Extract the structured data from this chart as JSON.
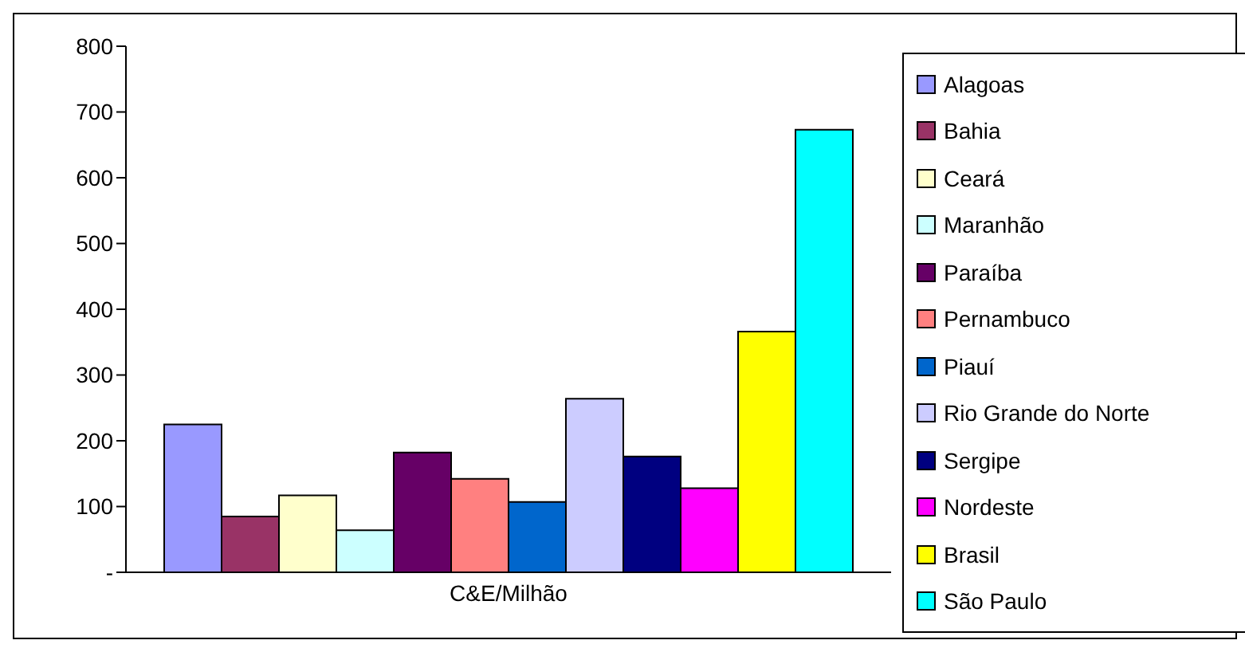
{
  "chart_data": {
    "type": "bar",
    "categories": [
      "C&E/Milhão"
    ],
    "series": [
      {
        "name": "Alagoas",
        "color": "#9999ff",
        "values": [
          225
        ]
      },
      {
        "name": "Bahia",
        "color": "#993366",
        "values": [
          85
        ]
      },
      {
        "name": "Ceará",
        "color": "#ffffcc",
        "values": [
          117
        ]
      },
      {
        "name": "Maranhão",
        "color": "#ccffff",
        "values": [
          64
        ]
      },
      {
        "name": "Paraíba",
        "color": "#660066",
        "values": [
          182
        ]
      },
      {
        "name": "Pernambuco",
        "color": "#ff8080",
        "values": [
          142
        ]
      },
      {
        "name": "Piauí",
        "color": "#0066cc",
        "values": [
          107
        ]
      },
      {
        "name": "Rio Grande do Norte",
        "color": "#ccccff",
        "values": [
          264
        ]
      },
      {
        "name": "Sergipe",
        "color": "#000080",
        "values": [
          176
        ]
      },
      {
        "name": "Nordeste",
        "color": "#ff00ff",
        "values": [
          128
        ]
      },
      {
        "name": "Brasil",
        "color": "#ffff00",
        "values": [
          366
        ]
      },
      {
        "name": "São Paulo",
        "color": "#00ffff",
        "values": [
          673
        ]
      }
    ],
    "ylim": [
      0,
      800
    ],
    "yticks": [
      {
        "value": 0,
        "label": "-"
      },
      100,
      200,
      300,
      400,
      500,
      600,
      700,
      800
    ],
    "grid": false,
    "legend": "right"
  }
}
